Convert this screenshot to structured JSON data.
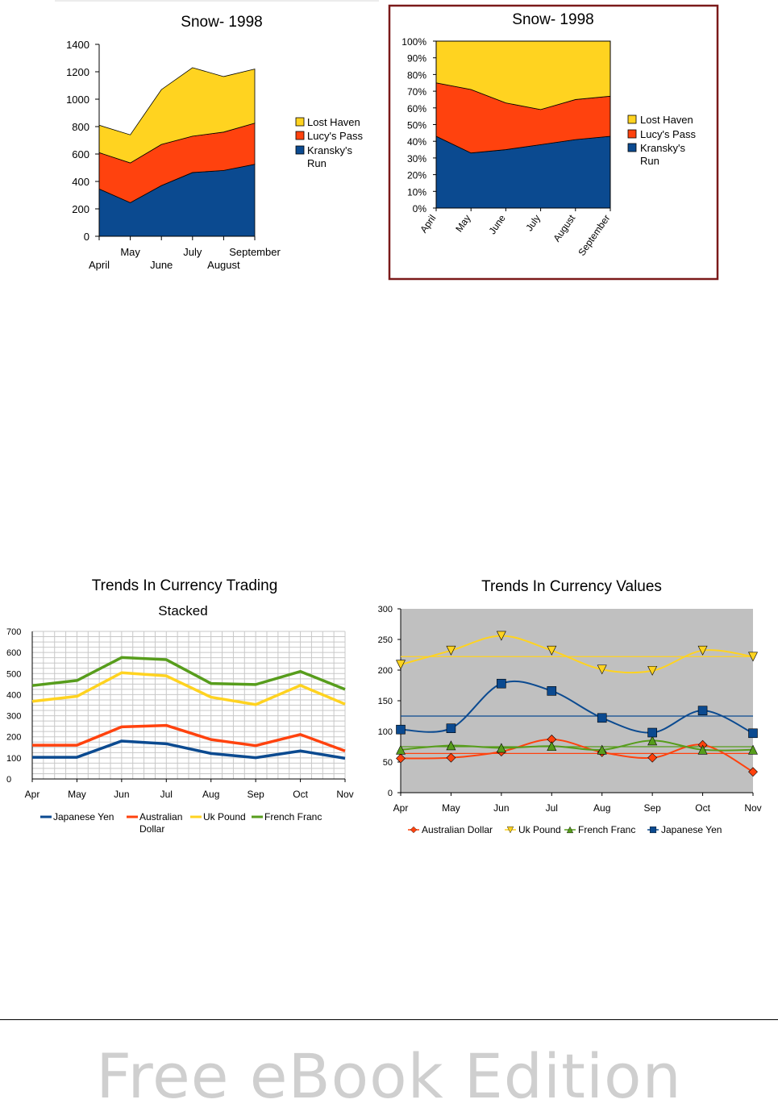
{
  "chart_data": [
    {
      "type": "area",
      "stacked": true,
      "title": "Snow- 1998",
      "categories": [
        "April",
        "May",
        "June",
        "July",
        "August",
        "September"
      ],
      "series": [
        {
          "name": "Kransky's Run",
          "values": [
            345,
            245,
            370,
            465,
            480,
            525
          ],
          "color": "#0b4a90"
        },
        {
          "name": "Lucy's Pass",
          "values": [
            265,
            290,
            300,
            265,
            280,
            300
          ],
          "color": "#ff420e"
        },
        {
          "name": "Lost Haven",
          "values": [
            200,
            205,
            400,
            500,
            405,
            395
          ],
          "color": "#ffd320"
        }
      ],
      "yticks": [
        "0",
        "200",
        "400",
        "600",
        "800",
        "1000",
        "1200",
        "1400"
      ],
      "ylim": [
        0,
        1400
      ],
      "legend": [
        "Lost Haven",
        "Lucy's Pass",
        "Kransky's Run"
      ],
      "legend_position": "right"
    },
    {
      "type": "area",
      "stacked": true,
      "percent": true,
      "title": "Snow- 1998",
      "categories": [
        "April",
        "May",
        "June",
        "July",
        "August",
        "September"
      ],
      "series": [
        {
          "name": "Kransky's Run",
          "values": [
            43,
            33,
            35,
            38,
            41,
            43
          ],
          "color": "#0b4a90"
        },
        {
          "name": "Lucy's Pass",
          "values": [
            32,
            38,
            28,
            21,
            24,
            24
          ],
          "color": "#ff420e"
        },
        {
          "name": "Lost Haven",
          "values": [
            25,
            29,
            37,
            41,
            35,
            33
          ],
          "color": "#ffd320"
        }
      ],
      "yticks": [
        "0%",
        "10%",
        "20%",
        "30%",
        "40%",
        "50%",
        "60%",
        "70%",
        "80%",
        "90%",
        "100%"
      ],
      "ylim": [
        0,
        100
      ],
      "legend": [
        "Lost Haven",
        "Lucy's Pass",
        "Kransky's Run"
      ],
      "legend_position": "right",
      "border_color": "#7b1a1a"
    },
    {
      "type": "line",
      "stacked": true,
      "title": "Trends In Currency Trading",
      "subtitle": "Stacked",
      "categories": [
        "Apr",
        "May",
        "Jun",
        "Jul",
        "Aug",
        "Sep",
        "Oct",
        "Nov"
      ],
      "series": [
        {
          "name": "Japanese Yen",
          "values": [
            103,
            103,
            180,
            167,
            121,
            101,
            133,
            98
          ],
          "color": "#0b4a90"
        },
        {
          "name": "Australian Dollar",
          "values": [
            57,
            57,
            67,
            87,
            66,
            57,
            78,
            35
          ],
          "color": "#ff420e"
        },
        {
          "name": "Uk Pound",
          "values": [
            208,
            232,
            257,
            235,
            201,
            195,
            233,
            222
          ],
          "color": "#ffd320"
        },
        {
          "name": "French Franc",
          "values": [
            75,
            75,
            72,
            77,
            65,
            95,
            66,
            70
          ],
          "color": "#579d1c"
        }
      ],
      "yticks": [
        "0",
        "100",
        "200",
        "300",
        "400",
        "500",
        "600",
        "700"
      ],
      "ylim": [
        0,
        700
      ],
      "legend": [
        "Japanese Yen",
        "Australian Dollar",
        "Uk Pound",
        "French Franc"
      ],
      "legend_position": "bottom"
    },
    {
      "type": "line",
      "title": "Trends In Currency Values",
      "categories": [
        "Apr",
        "May",
        "Jun",
        "Jul",
        "Aug",
        "Sep",
        "Oct",
        "Nov"
      ],
      "series": [
        {
          "name": "Australian Dollar",
          "values": [
            56,
            57,
            67,
            87,
            66,
            57,
            78,
            34
          ],
          "color": "#ff420e",
          "marker": "diamond",
          "trend": 64
        },
        {
          "name": "Uk Pound",
          "values": [
            209,
            232,
            256,
            232,
            201,
            199,
            232,
            222
          ],
          "color": "#ffd320",
          "marker": "triangle-down",
          "trend": 222
        },
        {
          "name": "French Franc",
          "values": [
            70,
            77,
            73,
            76,
            70,
            85,
            70,
            70
          ],
          "color": "#579d1c",
          "marker": "triangle-up",
          "trend": 75
        },
        {
          "name": "Japanese Yen",
          "values": [
            103,
            105,
            178,
            166,
            122,
            98,
            134,
            97
          ],
          "color": "#0b4a90",
          "marker": "square",
          "trend": 125
        }
      ],
      "yticks": [
        "0",
        "50",
        "100",
        "150",
        "200",
        "250",
        "300"
      ],
      "ylim": [
        0,
        300
      ],
      "legend": [
        "Australian Dollar",
        "Uk Pound",
        "French Franc",
        "Japanese Yen"
      ],
      "legend_position": "bottom",
      "plot_background": "#c0c0c0"
    }
  ],
  "footer": {
    "text": "Free eBook Edition"
  }
}
